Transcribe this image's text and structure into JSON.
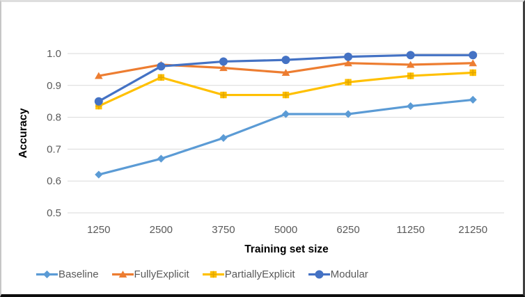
{
  "chart_data": {
    "type": "line",
    "title": "",
    "xlabel": "Training set size",
    "ylabel": "Accuracy",
    "categories": [
      "1250",
      "2500",
      "3750",
      "5000",
      "6250",
      "11250",
      "21250"
    ],
    "series": [
      {
        "name": "Baseline",
        "color": "#5B9BD5",
        "marker": "diamond",
        "values": [
          0.62,
          0.67,
          0.735,
          0.81,
          0.81,
          0.835,
          0.855
        ]
      },
      {
        "name": "FullyExplicit",
        "color": "#ED7D31",
        "marker": "triangle",
        "values": [
          0.93,
          0.965,
          0.955,
          0.94,
          0.97,
          0.965,
          0.97
        ]
      },
      {
        "name": "PartiallyExplicit",
        "color": "#FFC000",
        "marker": "square",
        "values": [
          0.835,
          0.925,
          0.87,
          0.87,
          0.91,
          0.93,
          0.94
        ]
      },
      {
        "name": "Modular",
        "color": "#4472C4",
        "marker": "circle",
        "values": [
          0.85,
          0.96,
          0.975,
          0.98,
          0.99,
          0.995,
          0.995
        ]
      }
    ],
    "ylim": [
      0.5,
      1.0
    ],
    "yticks": [
      "0.5",
      "0.6",
      "0.7",
      "0.8",
      "0.9",
      "1.0"
    ],
    "grid": "horizontal",
    "legend_position": "bottom",
    "colors": {
      "gridline": "#D9D9D9",
      "tick_label": "#595959",
      "axis_title": "#000000",
      "legend_label": "#595959",
      "square_cross": "#E2A600"
    }
  }
}
